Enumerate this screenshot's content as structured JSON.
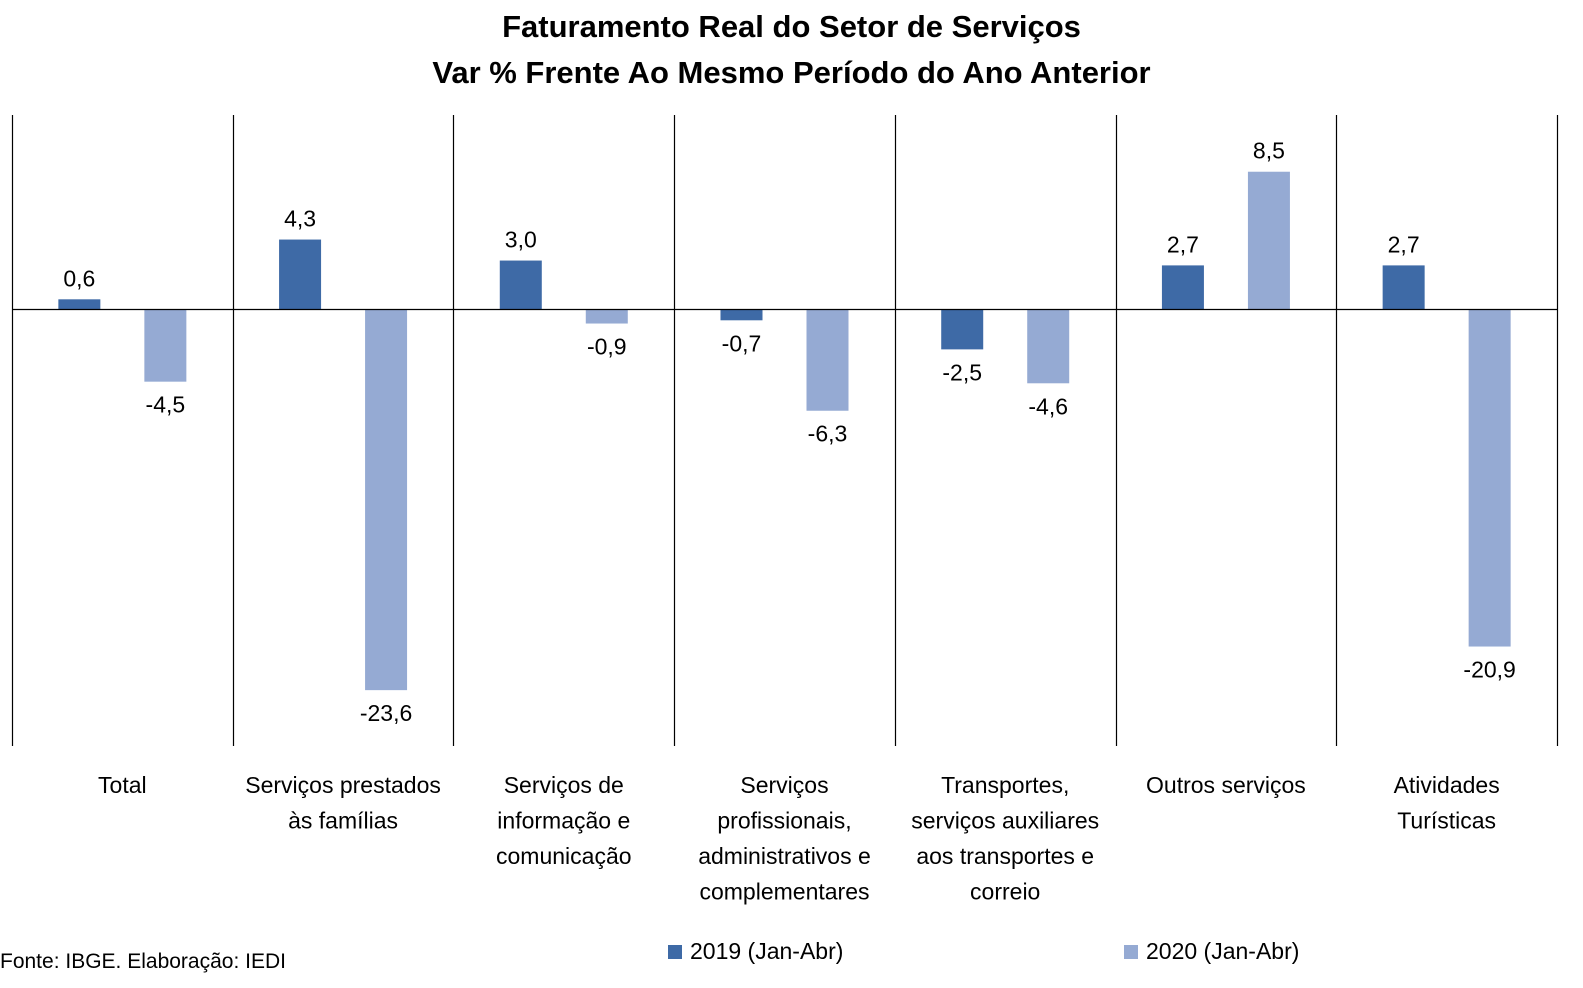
{
  "chart_data": {
    "type": "bar",
    "title": "Faturamento Real do Setor de Serviços",
    "subtitle": "Var % Frente Ao Mesmo Período do Ano Anterior",
    "categories": [
      [
        "Total"
      ],
      [
        "Serviços prestados",
        "às famílias"
      ],
      [
        "Serviços de",
        "informação e",
        "comunicação"
      ],
      [
        "Serviços",
        "profissionais,",
        "administrativos e",
        "complementares"
      ],
      [
        "Transportes,",
        "serviços auxiliares",
        "aos transportes e",
        "correio"
      ],
      [
        "Outros serviços"
      ],
      [
        "Atividades",
        "Turísticas"
      ]
    ],
    "series": [
      {
        "name": "2019 (Jan-Abr)",
        "color": "#3E6AA6",
        "values": [
          0.6,
          4.3,
          3.0,
          -0.7,
          -2.5,
          2.7,
          2.7
        ],
        "labels": [
          "0,6",
          "4,3",
          "3,0",
          "-0,7",
          "-2,5",
          "2,7",
          "2,7"
        ]
      },
      {
        "name": "2020 (Jan-Abr)",
        "color": "#95AAD3",
        "values": [
          -4.5,
          -23.6,
          -0.9,
          -6.3,
          -4.6,
          8.5,
          -20.9
        ],
        "labels": [
          "-4,5",
          "-23,6",
          "-0,9",
          "-6,3",
          "-4,6",
          "8,5",
          "-20,9"
        ]
      }
    ],
    "ylim": [
      -27,
      12
    ],
    "grid": false,
    "legend_position": "bottom"
  },
  "source": "Fonte: IBGE. Elaboração: IEDI"
}
